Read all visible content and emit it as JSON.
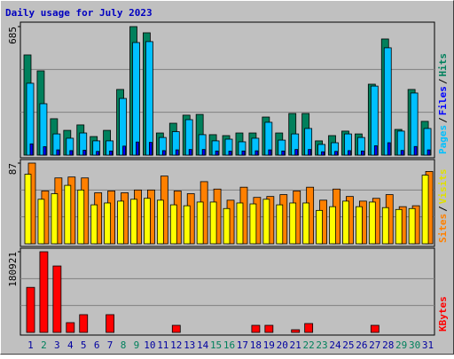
{
  "chart_data": {
    "type": "bar",
    "title": "Daily usage for July 2023",
    "categories": [
      "1",
      "2",
      "3",
      "4",
      "5",
      "6",
      "7",
      "8",
      "9",
      "10",
      "11",
      "12",
      "13",
      "14",
      "15",
      "16",
      "17",
      "18",
      "19",
      "20",
      "21",
      "22",
      "23",
      "24",
      "25",
      "26",
      "27",
      "28",
      "29",
      "30",
      "31"
    ],
    "category_colors": [
      "#0000a0",
      "#00805c",
      "#0000a0",
      "#0000a0",
      "#0000a0",
      "#0000a0",
      "#0000a0",
      "#00805c",
      "#00805c",
      "#0000a0",
      "#0000a0",
      "#0000a0",
      "#0000a0",
      "#0000a0",
      "#00805c",
      "#00805c",
      "#0000a0",
      "#0000a0",
      "#0000a0",
      "#0000a0",
      "#0000a0",
      "#00805c",
      "#00805c",
      "#0000a0",
      "#0000a0",
      "#0000a0",
      "#0000a0",
      "#0000a0",
      "#00805c",
      "#00805c",
      "#0000a0"
    ],
    "legend_separator": "/",
    "panels": [
      {
        "ylim": [
          0,
          685
        ],
        "yticks": [
          685
        ],
        "series": [
          {
            "name": "Hits",
            "color": "#00805c",
            "values": [
              534,
              449,
              194,
              132,
              161,
              99,
              132,
              350,
              685,
              652,
              118,
              170,
              213,
              217,
              109,
              104,
              118,
              118,
              203,
              118,
              222,
              222,
              76,
              104,
              128,
              113,
              378,
              619,
              137,
              350,
              180
            ]
          },
          {
            "name": "Pages",
            "color": "#00c0ff",
            "values": [
              383,
              274,
              113,
              90,
              118,
              76,
              76,
              302,
              600,
              605,
              94,
              125,
              189,
              109,
              76,
              85,
              71,
              90,
              175,
              80,
              113,
              142,
              57,
              66,
              113,
              94,
              368,
              572,
              128,
              331,
              142
            ]
          },
          {
            "name": "Files",
            "color": "#0000ff",
            "values": [
              60,
              45,
              28,
              24,
              26,
              20,
              22,
              48,
              70,
              68,
              24,
              28,
              30,
              30,
              22,
              21,
              22,
              23,
              28,
              22,
              30,
              30,
              18,
              20,
              24,
              22,
              50,
              66,
              25,
              46,
              28
            ]
          }
        ]
      },
      {
        "ylim": [
          0,
          87
        ],
        "yticks": [
          87
        ],
        "series": [
          {
            "name": "Sites",
            "color": "#ff8000",
            "values": [
              87,
              57,
              71,
              72,
              71,
              55,
              57,
              55,
              58,
              58,
              73,
              57,
              54,
              67,
              59,
              47,
              61,
              50,
              51,
              53,
              57,
              61,
              47,
              59,
              51,
              46,
              49,
              53,
              40,
              41,
              78
            ]
          },
          {
            "name": "Visits",
            "color": "#ffff00",
            "values": [
              75,
              48,
              54,
              63,
              58,
              42,
              44,
              46,
              48,
              49,
              47,
              42,
              41,
              45,
              45,
              38,
              44,
              43,
              48,
              42,
              44,
              44,
              36,
              40,
              46,
              40,
              45,
              39,
              37,
              38,
              74
            ]
          }
        ]
      },
      {
        "ylim": [
          0,
          180921
        ],
        "yticks": [
          180921
        ],
        "series": [
          {
            "name": "KBytes",
            "color": "#ff0000",
            "values": [
              101000,
              180921,
              149000,
              21900,
              39800,
              0,
              39800,
              0,
              0,
              0,
              0,
              15900,
              0,
              0,
              0,
              0,
              0,
              15900,
              15900,
              0,
              6000,
              19900,
              0,
              0,
              0,
              0,
              15900,
              0,
              0,
              0,
              0
            ]
          }
        ]
      }
    ]
  }
}
